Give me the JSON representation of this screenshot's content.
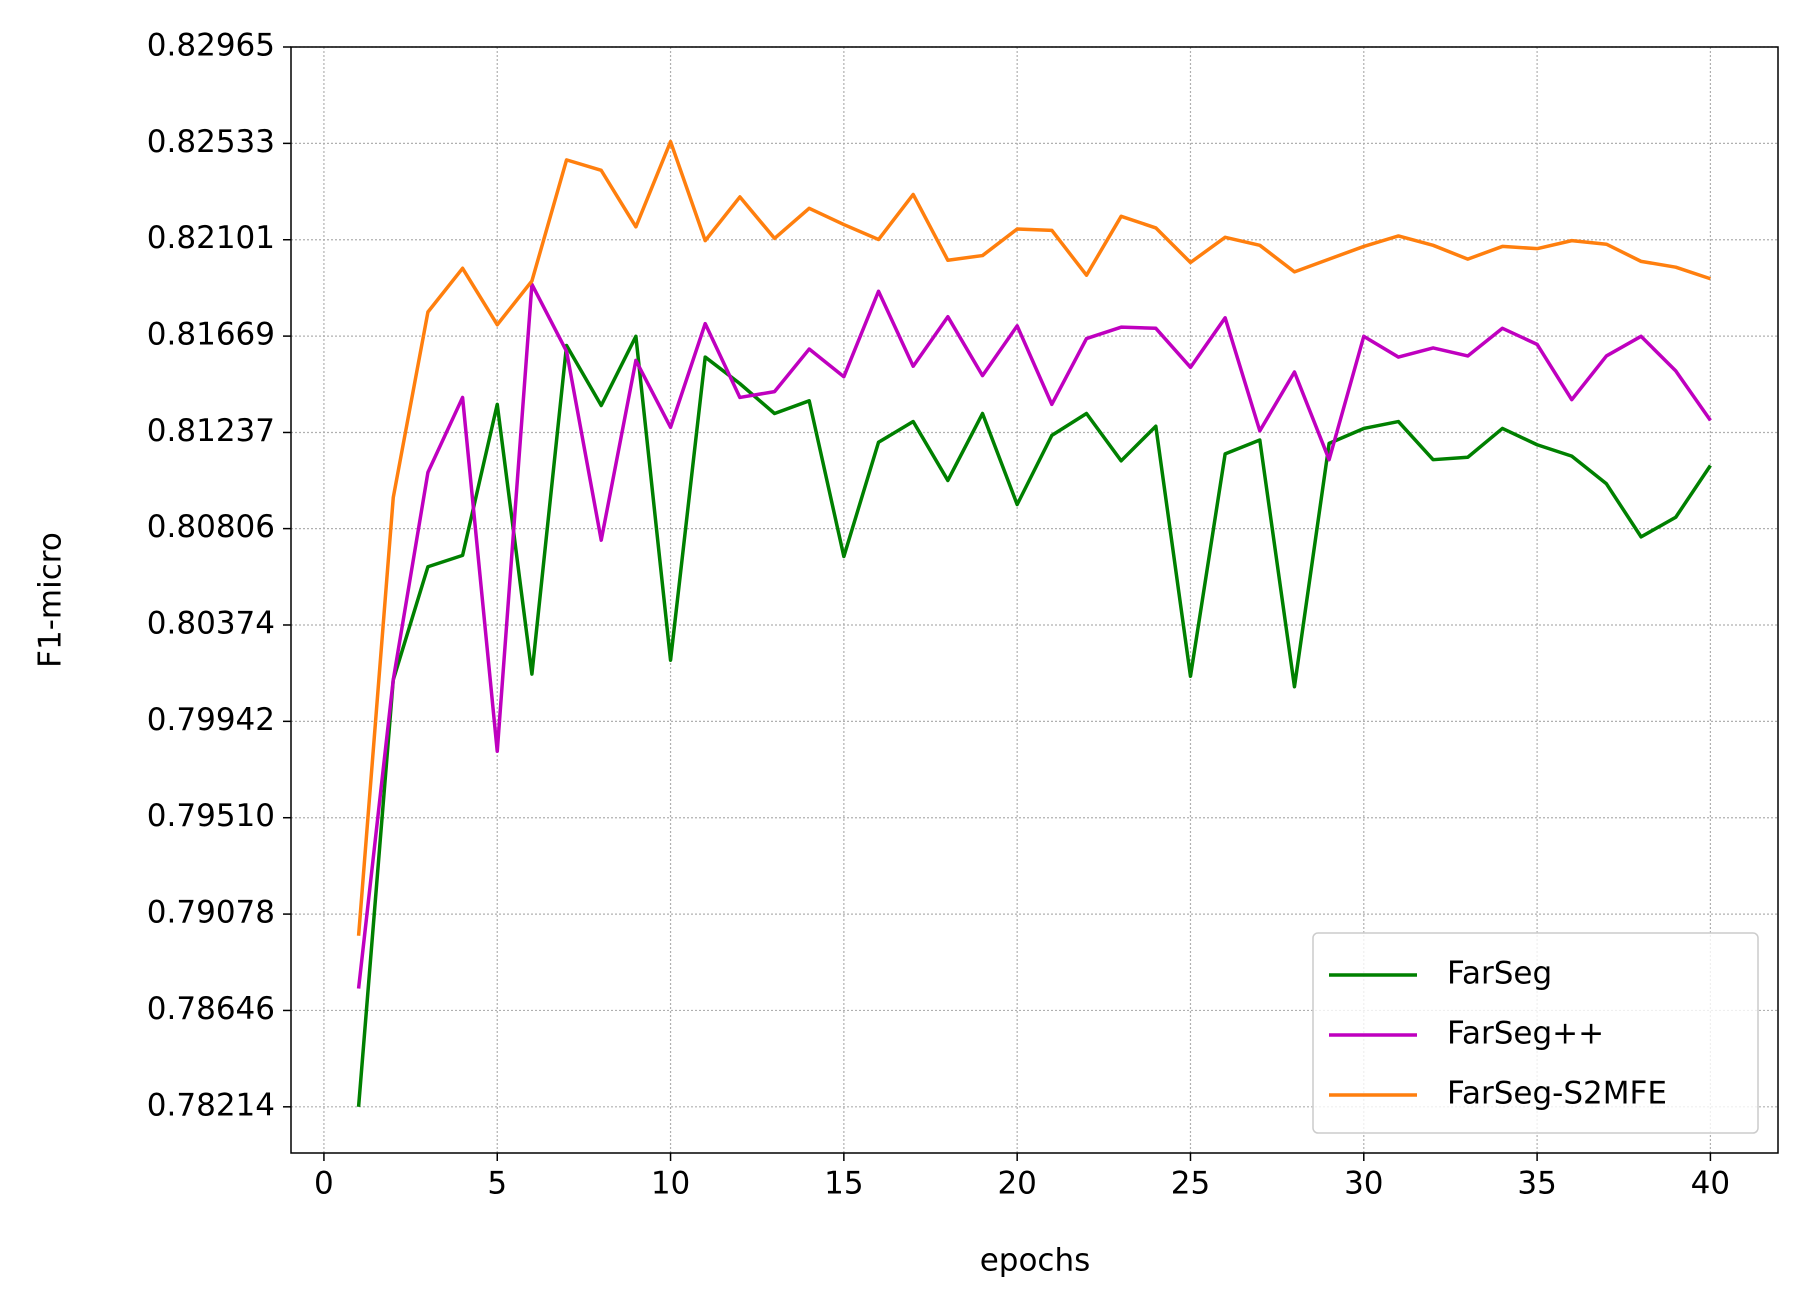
{
  "chart_data": {
    "type": "line",
    "xlabel": "epochs",
    "ylabel": "F1-micro",
    "x": [
      1,
      2,
      3,
      4,
      5,
      6,
      7,
      8,
      9,
      10,
      11,
      12,
      13,
      14,
      15,
      16,
      17,
      18,
      19,
      20,
      21,
      22,
      23,
      24,
      25,
      26,
      27,
      28,
      29,
      30,
      31,
      32,
      33,
      34,
      35,
      36,
      37,
      38,
      39,
      40
    ],
    "series": [
      {
        "name": "FarSeg",
        "color": "#008000",
        "values": [
          0.78214,
          0.80128,
          0.80635,
          0.80686,
          0.81363,
          0.80154,
          0.81627,
          0.81358,
          0.81668,
          0.80216,
          0.81575,
          0.81456,
          0.81322,
          0.81379,
          0.80681,
          0.81193,
          0.81286,
          0.81022,
          0.81322,
          0.80914,
          0.81224,
          0.81322,
          0.8111,
          0.81265,
          0.80144,
          0.81141,
          0.81203,
          0.80097,
          0.81188,
          0.81255,
          0.81286,
          0.81115,
          0.81126,
          0.81255,
          0.81182,
          0.81131,
          0.81007,
          0.80769,
          0.80857,
          0.81089
        ]
      },
      {
        "name": "FarSeg++",
        "color": "#bf00bf",
        "values": [
          0.78744,
          0.80128,
          0.81058,
          0.81394,
          0.79808,
          0.81901,
          0.81601,
          0.80754,
          0.8156,
          0.8126,
          0.81725,
          0.81394,
          0.8142,
          0.81611,
          0.81487,
          0.8187,
          0.81534,
          0.81756,
          0.81492,
          0.81715,
          0.81363,
          0.81658,
          0.81709,
          0.81704,
          0.81529,
          0.81751,
          0.81244,
          0.81508,
          0.81115,
          0.81668,
          0.81575,
          0.81616,
          0.8158,
          0.81704,
          0.81632,
          0.81384,
          0.8158,
          0.81668,
          0.81513,
          0.81291
        ]
      },
      {
        "name": "FarSeg-S2MFE",
        "color": "#ff7f0e",
        "values": [
          0.78981,
          0.80945,
          0.81777,
          0.81973,
          0.8172,
          0.81916,
          0.82459,
          0.82412,
          0.82159,
          0.82541,
          0.82097,
          0.82293,
          0.82107,
          0.82242,
          0.82169,
          0.82102,
          0.82304,
          0.82009,
          0.8203,
          0.82149,
          0.82143,
          0.81942,
          0.82206,
          0.82154,
          0.81999,
          0.82112,
          0.82076,
          0.81957,
          0.82014,
          0.82071,
          0.82118,
          0.82076,
          0.82014,
          0.82071,
          0.82061,
          0.82097,
          0.82081,
          0.82004,
          0.81978,
          0.81926
        ]
      }
    ],
    "xlim": [
      -0.95,
      41.95
    ],
    "xticks": [
      0,
      5,
      10,
      15,
      20,
      25,
      30,
      35,
      40
    ],
    "ylim": [
      0.78007,
      0.82965
    ],
    "yticks": [
      0.78214,
      0.78646,
      0.79078,
      {
        "value": 0.7951,
        "label": "0.79510"
      },
      0.79942,
      0.80374,
      0.80806,
      0.81237,
      0.81669,
      0.82101,
      0.82533,
      0.82965
    ],
    "grid": true,
    "legend": "lower right"
  }
}
